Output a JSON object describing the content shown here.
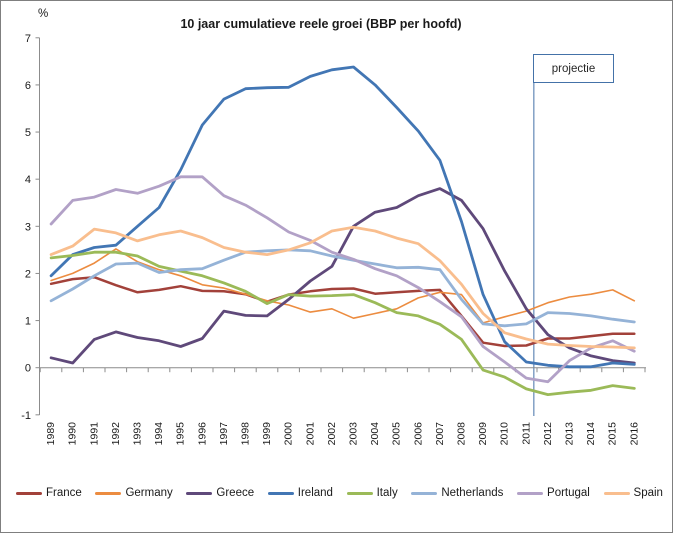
{
  "frame": {
    "border_color": "#7F7F7F",
    "background": "#FFFFFF"
  },
  "chart_data": {
    "type": "line",
    "title": "10 jaar cumulatieve reele groei (BBP per hoofd)",
    "y_unit_label": "%",
    "xlabel": "",
    "ylabel": "%",
    "ylim": [
      -1,
      7
    ],
    "y_ticks": [
      7,
      6,
      5,
      4,
      3,
      2,
      1,
      0,
      -1
    ],
    "grid": false,
    "legend_position": "bottom",
    "axis_color": "#8C8C8C",
    "text_color": "#1A1A1A",
    "x": [
      "1989",
      "1990",
      "1991",
      "1992",
      "1993",
      "1994",
      "1995",
      "1996",
      "1997",
      "1998",
      "1999",
      "2000",
      "2001",
      "2002",
      "2003",
      "2004",
      "2005",
      "2006",
      "2007",
      "2008",
      "2009",
      "2010",
      "2011",
      "2012",
      "2013",
      "2014",
      "2015",
      "2016"
    ],
    "series": [
      {
        "name": "France",
        "color": "#A2413A",
        "line_width": 2.5,
        "values": [
          1.78,
          1.88,
          1.92,
          1.75,
          1.6,
          1.65,
          1.73,
          1.63,
          1.62,
          1.56,
          1.4,
          1.55,
          1.62,
          1.67,
          1.68,
          1.57,
          1.6,
          1.63,
          1.65,
          1.1,
          0.53,
          0.46,
          0.47,
          0.62,
          0.62,
          0.67,
          0.72,
          0.72
        ]
      },
      {
        "name": "Germany",
        "color": "#EC8C40",
        "line_width": 1.6,
        "values": [
          1.85,
          2.0,
          2.22,
          2.52,
          2.25,
          2.08,
          1.95,
          1.76,
          1.69,
          1.56,
          1.42,
          1.33,
          1.18,
          1.25,
          1.05,
          1.15,
          1.25,
          1.48,
          1.6,
          1.55,
          0.95,
          1.08,
          1.2,
          1.38,
          1.5,
          1.56,
          1.65,
          1.42
        ]
      },
      {
        "name": "Greece",
        "color": "#5F497A",
        "line_width": 2.8,
        "values": [
          0.21,
          0.1,
          0.6,
          0.76,
          0.64,
          0.57,
          0.45,
          0.62,
          1.2,
          1.11,
          1.1,
          1.45,
          1.84,
          2.15,
          3.0,
          3.3,
          3.4,
          3.65,
          3.8,
          3.55,
          2.95,
          2.05,
          1.25,
          0.7,
          0.42,
          0.25,
          0.15,
          0.1
        ]
      },
      {
        "name": "Ireland",
        "color": "#4276B4",
        "line_width": 2.8,
        "values": [
          1.95,
          2.4,
          2.55,
          2.6,
          3.0,
          3.4,
          4.2,
          5.15,
          5.7,
          5.92,
          5.94,
          5.95,
          6.18,
          6.32,
          6.38,
          6.0,
          5.52,
          5.02,
          4.4,
          3.1,
          1.55,
          0.55,
          0.12,
          0.05,
          0.02,
          0.02,
          0.1,
          0.07
        ]
      },
      {
        "name": "Italy",
        "color": "#9BBA58",
        "line_width": 2.8,
        "values": [
          2.33,
          2.38,
          2.45,
          2.45,
          2.37,
          2.15,
          2.05,
          1.95,
          1.8,
          1.62,
          1.36,
          1.55,
          1.52,
          1.53,
          1.55,
          1.38,
          1.17,
          1.1,
          0.92,
          0.6,
          -0.05,
          -0.2,
          -0.45,
          -0.57,
          -0.52,
          -0.48,
          -0.38,
          -0.44
        ]
      },
      {
        "name": "Netherlands",
        "color": "#95B3D7",
        "line_width": 2.8,
        "values": [
          1.42,
          1.67,
          1.95,
          2.2,
          2.22,
          2.02,
          2.08,
          2.1,
          2.28,
          2.45,
          2.48,
          2.5,
          2.48,
          2.37,
          2.28,
          2.2,
          2.12,
          2.13,
          2.08,
          1.45,
          0.93,
          0.89,
          0.93,
          1.17,
          1.15,
          1.1,
          1.03,
          0.97
        ]
      },
      {
        "name": "Portugal",
        "color": "#B2A1C7",
        "line_width": 2.8,
        "values": [
          3.05,
          3.55,
          3.62,
          3.78,
          3.7,
          3.85,
          4.05,
          4.05,
          3.65,
          3.45,
          3.18,
          2.88,
          2.7,
          2.45,
          2.3,
          2.1,
          1.95,
          1.7,
          1.4,
          1.08,
          0.45,
          0.12,
          -0.22,
          -0.3,
          0.15,
          0.42,
          0.57,
          0.35
        ]
      },
      {
        "name": "Spain",
        "color": "#F9BE8E",
        "line_width": 2.8,
        "values": [
          2.4,
          2.58,
          2.94,
          2.86,
          2.69,
          2.82,
          2.9,
          2.76,
          2.55,
          2.45,
          2.4,
          2.5,
          2.65,
          2.9,
          2.98,
          2.9,
          2.75,
          2.63,
          2.27,
          1.77,
          1.15,
          0.74,
          0.61,
          0.5,
          0.47,
          0.45,
          0.44,
          0.42
        ]
      }
    ],
    "annotation": {
      "label": "projectie",
      "line_color": "#4472A8",
      "x_year": 2011.35
    }
  }
}
